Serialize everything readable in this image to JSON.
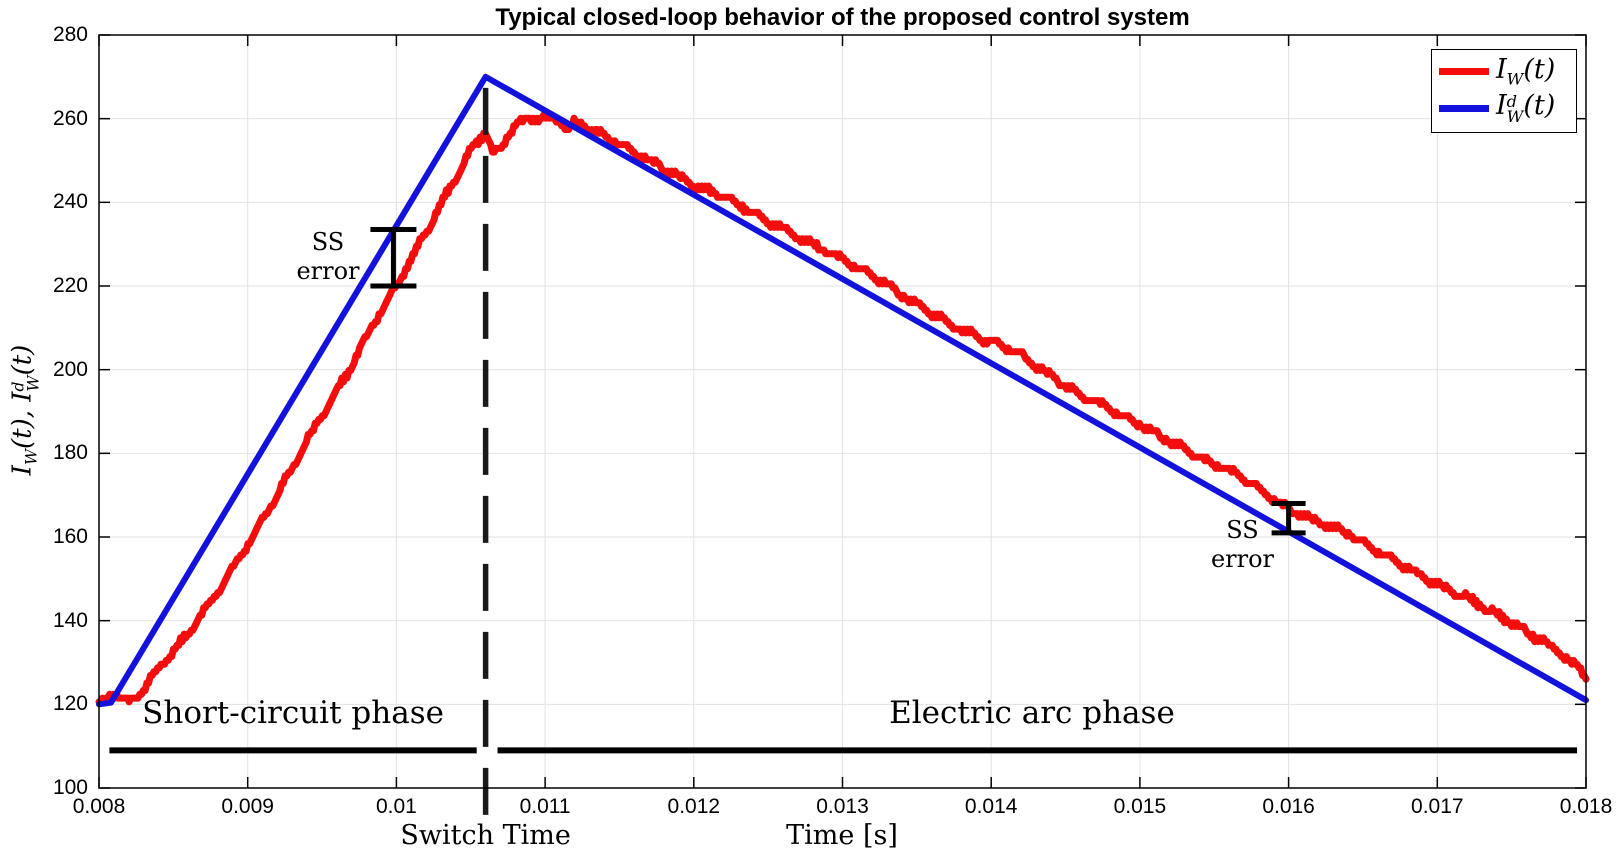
{
  "chart_data": {
    "type": "line",
    "title": "Typical closed-loop behavior of the proposed control system",
    "xlabel": "Time [s]",
    "ylabel": "I_W(t), I_W^d(t)",
    "xlim": [
      0.008,
      0.018
    ],
    "ylim": [
      100,
      280
    ],
    "xticks": [
      "0.008",
      "0.009",
      "0.01",
      "0.011",
      "0.012",
      "0.013",
      "0.014",
      "0.015",
      "0.016",
      "0.017",
      "0.018"
    ],
    "yticks": [
      "100",
      "120",
      "140",
      "160",
      "180",
      "200",
      "220",
      "240",
      "260",
      "280"
    ],
    "grid": true,
    "grid_color": "#e2e2e2",
    "legend_position": "top-right",
    "series": [
      {
        "name": "I_W(t)",
        "role": "measured",
        "color": "#f40d0d",
        "style": "noisy",
        "line_width": 7,
        "points": [
          [
            0.008,
            120
          ],
          [
            0.00805,
            121
          ],
          [
            0.0081,
            123
          ],
          [
            0.00815,
            121.5
          ],
          [
            0.0082,
            120.5
          ],
          [
            0.0083,
            123.5
          ],
          [
            0.0084,
            128.5
          ],
          [
            0.0085,
            132.5
          ],
          [
            0.0086,
            137
          ],
          [
            0.0087,
            142
          ],
          [
            0.0088,
            147
          ],
          [
            0.0089,
            152.5
          ],
          [
            0.009,
            158
          ],
          [
            0.0091,
            164
          ],
          [
            0.0092,
            170
          ],
          [
            0.0093,
            176.5
          ],
          [
            0.0094,
            183
          ],
          [
            0.0095,
            189
          ],
          [
            0.0096,
            195
          ],
          [
            0.0097,
            201
          ],
          [
            0.0098,
            208
          ],
          [
            0.0099,
            214
          ],
          [
            0.01,
            220
          ],
          [
            0.0101,
            226.5
          ],
          [
            0.0102,
            233
          ],
          [
            0.0103,
            239.5
          ],
          [
            0.0104,
            246
          ],
          [
            0.0105,
            252.5
          ],
          [
            0.0106,
            257
          ],
          [
            0.01065,
            251.5
          ],
          [
            0.0107,
            252.5
          ],
          [
            0.01075,
            256
          ],
          [
            0.0108,
            258.5
          ],
          [
            0.0109,
            260
          ],
          [
            0.011,
            260.5
          ],
          [
            0.0111,
            259.5
          ],
          [
            0.01115,
            257.5
          ],
          [
            0.0112,
            259
          ],
          [
            0.0113,
            257.5
          ],
          [
            0.0114,
            256
          ],
          [
            0.0116,
            252
          ],
          [
            0.0118,
            248
          ],
          [
            0.012,
            244
          ],
          [
            0.0122,
            241.5
          ],
          [
            0.0124,
            237.5
          ],
          [
            0.0126,
            233.5
          ],
          [
            0.0128,
            230
          ],
          [
            0.013,
            226.5
          ],
          [
            0.0132,
            222.5
          ],
          [
            0.0134,
            218
          ],
          [
            0.0136,
            213.5
          ],
          [
            0.0138,
            209.5
          ],
          [
            0.014,
            206.5
          ],
          [
            0.0141,
            205.5
          ],
          [
            0.0142,
            203.5
          ],
          [
            0.0144,
            198.5
          ],
          [
            0.0146,
            194
          ],
          [
            0.0148,
            190.5
          ],
          [
            0.015,
            187
          ],
          [
            0.0152,
            183
          ],
          [
            0.0154,
            179
          ],
          [
            0.0156,
            176
          ],
          [
            0.0158,
            171.5
          ],
          [
            0.016,
            166.5
          ],
          [
            0.0162,
            163.5
          ],
          [
            0.0164,
            161
          ],
          [
            0.0166,
            156.5
          ],
          [
            0.0168,
            152.5
          ],
          [
            0.017,
            148.5
          ],
          [
            0.0172,
            145.5
          ],
          [
            0.0174,
            141.5
          ],
          [
            0.0176,
            137.5
          ],
          [
            0.0178,
            133
          ],
          [
            0.018,
            127
          ]
        ],
        "label_tokens": [
          {
            "t": "I"
          },
          {
            "sub": "W"
          },
          {
            "t": "(t)"
          }
        ]
      },
      {
        "name": "I_W^d(t)",
        "role": "desired",
        "color": "#1212dc",
        "style": "solid",
        "line_width": 6,
        "points": [
          [
            0.008,
            120
          ],
          [
            0.00808,
            120.4
          ],
          [
            0.0106,
            270
          ],
          [
            0.018,
            121
          ]
        ],
        "label_tokens": [
          {
            "t": "I"
          },
          {
            "stack": {
              "sup": "d",
              "sub": "W"
            }
          },
          {
            "t": "(t)"
          }
        ]
      }
    ],
    "ylabel_tokens": [
      {
        "t": "I"
      },
      {
        "sub": "W"
      },
      {
        "t": "(t), "
      },
      {
        "t": "I"
      },
      {
        "stack": {
          "sup": "d",
          "sub": "W"
        }
      },
      {
        "t": "(t)"
      }
    ],
    "annotations": {
      "switch_time": {
        "x": 0.0106,
        "label": "Switch Time",
        "peak_value": 270
      },
      "phase_labels": [
        {
          "text": "Short-circuit phase",
          "x": 0.009305,
          "y": 118
        },
        {
          "text": "Electric arc phase",
          "x": 0.014274,
          "y": 118
        }
      ],
      "phase_lines": [
        {
          "y": 109,
          "x_from": 0.00807,
          "x_to": 0.01054
        },
        {
          "y": 109,
          "x_from": 0.01068,
          "x_to": 0.01794
        }
      ],
      "error_bars": [
        {
          "label": "SS error",
          "x": 0.00998,
          "y_from": 220,
          "y_to": 233.5,
          "cap_halfwidth": 23,
          "text_x": 0.00954,
          "text_y": 227
        },
        {
          "label": "SS error",
          "x": 0.016,
          "y_from": 161,
          "y_to": 168,
          "cap_halfwidth": 17,
          "text_x": 0.01569,
          "text_y": 158
        }
      ]
    },
    "colors": {
      "axis": "#000000",
      "grid": "#e2e2e2",
      "annotation": "#1a1a1a"
    }
  }
}
